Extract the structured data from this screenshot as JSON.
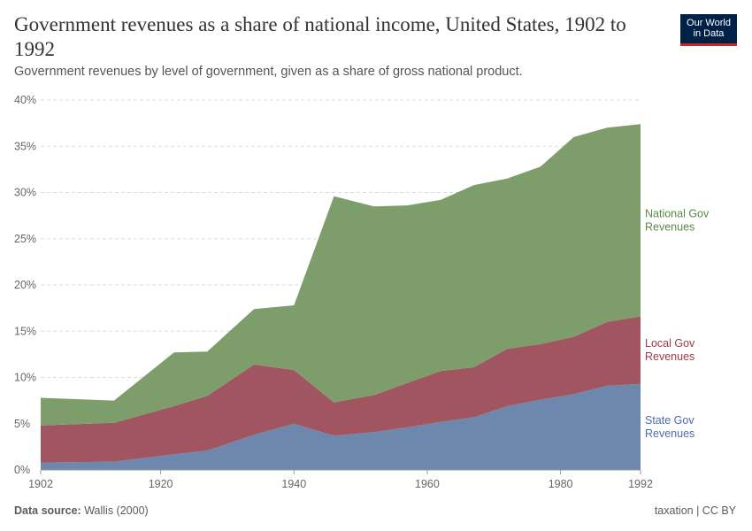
{
  "header": {
    "title": "Government revenues as a share of national income, United States, 1902 to 1992",
    "subtitle": "Government revenues by level of government, given as a share of gross national product."
  },
  "logo": {
    "line1": "Our World",
    "line2": "in Data"
  },
  "footer": {
    "source_label": "Data source:",
    "source_value": "Wallis (2000)",
    "right": "taxation | CC BY"
  },
  "colors": {
    "state": "#6d87ad",
    "local": "#a05560",
    "national": "#7d9e6b",
    "state_label": "#4a6ea8",
    "local_label": "#9a3c48",
    "national_label": "#5a8a48"
  },
  "chart_data": {
    "type": "area",
    "stacked": true,
    "x": [
      1902,
      1913,
      1922,
      1927,
      1934,
      1940,
      1946,
      1952,
      1957,
      1962,
      1967,
      1972,
      1977,
      1982,
      1987,
      1992
    ],
    "series": [
      {
        "name": "State Gov Revenues",
        "label_lines": [
          "State Gov",
          "Revenues"
        ],
        "values": [
          0.8,
          0.9,
          1.7,
          2.1,
          3.8,
          5.0,
          3.7,
          4.1,
          4.6,
          5.2,
          5.7,
          6.9,
          7.6,
          8.2,
          9.1,
          9.3
        ]
      },
      {
        "name": "Local Gov Revenues",
        "label_lines": [
          "Local Gov",
          "Revenues"
        ],
        "values": [
          4.0,
          4.2,
          5.2,
          5.9,
          7.6,
          5.8,
          3.6,
          4.0,
          4.8,
          5.5,
          5.4,
          6.2,
          6.0,
          6.2,
          6.9,
          7.3
        ]
      },
      {
        "name": "National Gov Revenues",
        "label_lines": [
          "National Gov",
          "Revenues"
        ],
        "values": [
          3.0,
          2.4,
          5.8,
          4.8,
          6.0,
          7.0,
          22.3,
          20.4,
          19.2,
          18.5,
          19.7,
          18.4,
          19.2,
          21.6,
          21.0,
          20.8
        ]
      }
    ],
    "xlim": [
      1902,
      1992
    ],
    "ylim": [
      0,
      40
    ],
    "yticks": [
      "0%",
      "5%",
      "10%",
      "15%",
      "20%",
      "25%",
      "30%",
      "35%",
      "40%"
    ],
    "xticks": [
      1902,
      1920,
      1940,
      1960,
      1980,
      1992
    ],
    "grid": true,
    "legend": "right-inline"
  }
}
